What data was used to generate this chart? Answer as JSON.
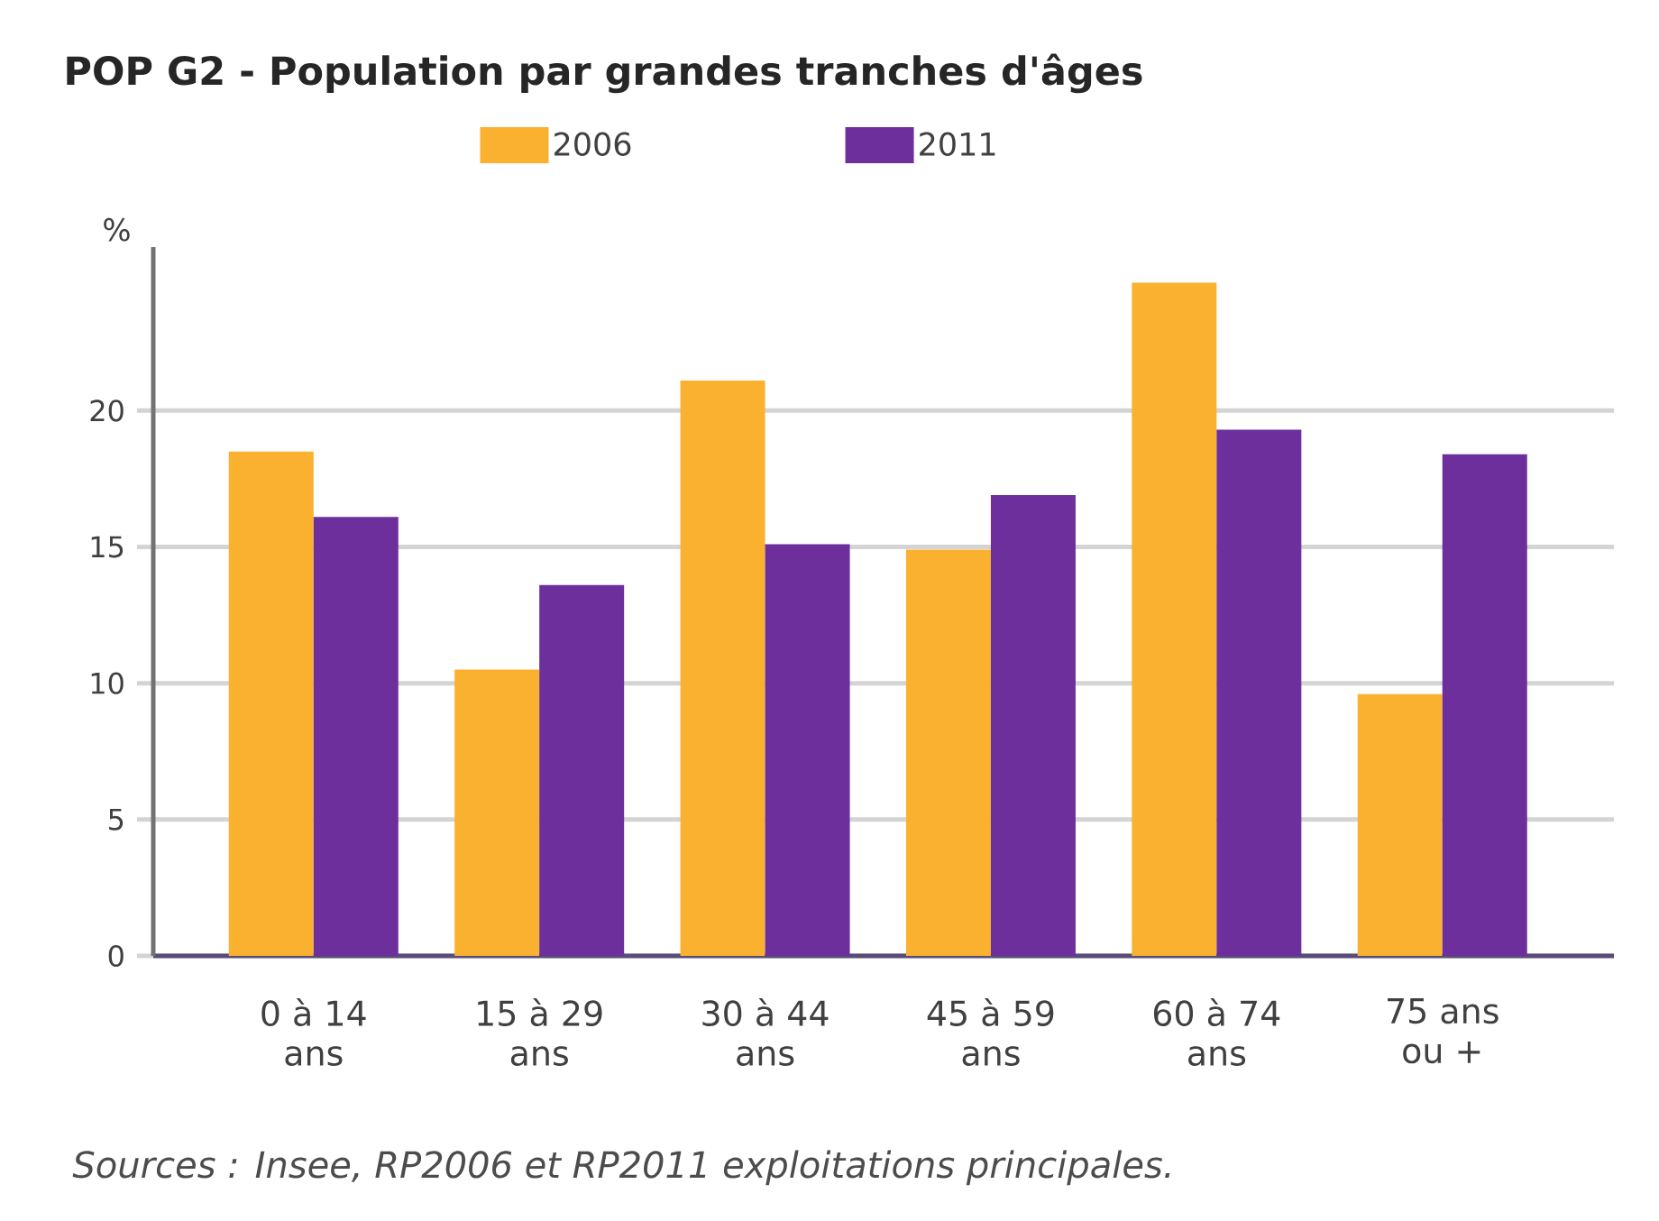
{
  "chart_data": {
    "type": "bar",
    "title": "POP G2 - Population par grandes tranches d'âges",
    "ylabel": "%",
    "categories": [
      "0 à 14 ans",
      "15 à 29 ans",
      "30 à 44 ans",
      "45 à 59 ans",
      "60 à 74 ans",
      "75 ans ou +"
    ],
    "series": [
      {
        "name": "2006",
        "color": "#fbb130",
        "values": [
          18.5,
          10.5,
          21.1,
          14.9,
          24.7,
          9.6
        ]
      },
      {
        "name": "2011",
        "color": "#6c2f9c",
        "values": [
          16.1,
          13.6,
          15.1,
          16.9,
          19.3,
          18.4
        ]
      }
    ],
    "ylim": [
      0,
      26
    ],
    "yticks": [
      0,
      5,
      10,
      15,
      20
    ],
    "grid": "y",
    "legend": "top",
    "annotations": [
      "Sources : Insee, RP2006 et RP2011 exploitations principales."
    ]
  }
}
